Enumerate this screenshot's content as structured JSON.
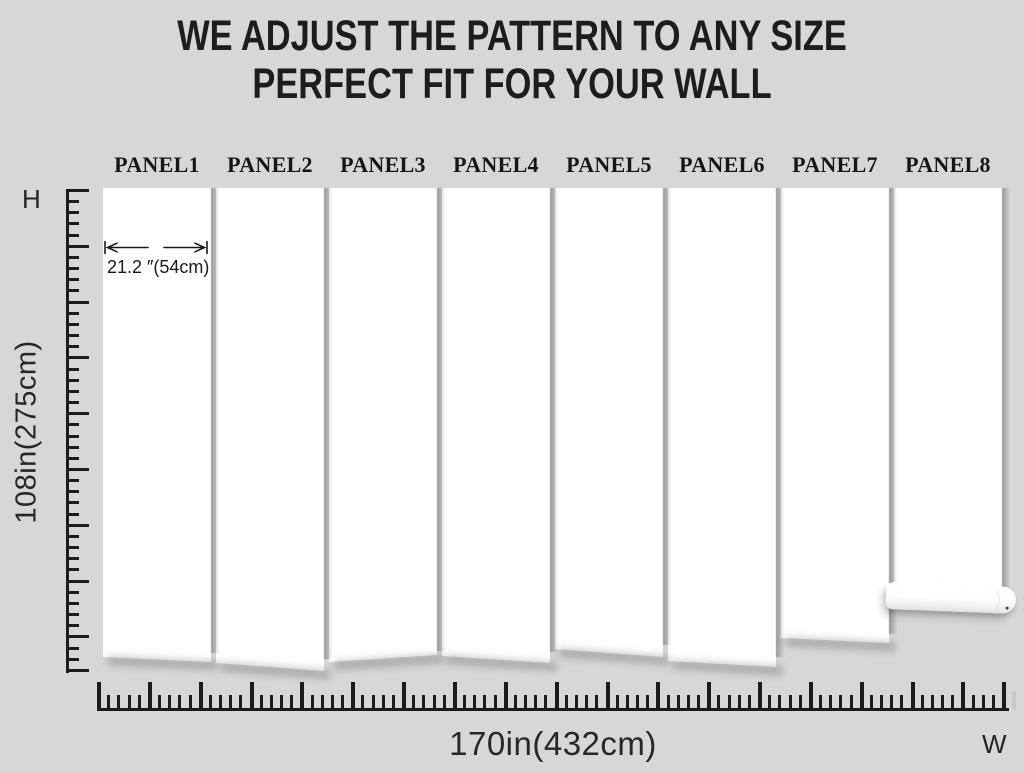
{
  "title": {
    "line1": "WE ADJUST THE PATTERN TO ANY SIZE",
    "line2": "PERFECT FIT FOR YOUR WALL"
  },
  "panels": {
    "labels": [
      "PANEL1",
      "PANEL2",
      "PANEL3",
      "PANEL4",
      "PANEL5",
      "PANEL6",
      "PANEL7",
      "PANEL8"
    ]
  },
  "annotation": {
    "width_label": "21.2 ″(54cm)"
  },
  "rulers": {
    "height": {
      "axis_letter": "H",
      "label": "108in(275cm)"
    },
    "width": {
      "axis_letter": "W",
      "label": "170in(432cm)"
    }
  },
  "colors": {
    "background": "#d7d7d7",
    "panel": "#ffffff",
    "ink": "#1c1c1c"
  }
}
